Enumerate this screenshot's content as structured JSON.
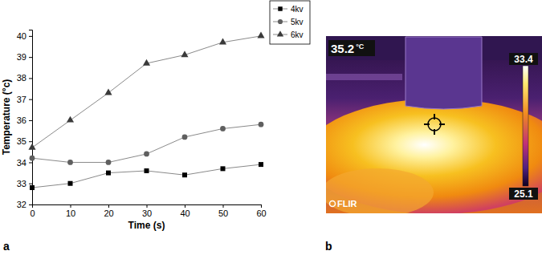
{
  "chart_data": {
    "type": "line",
    "panel_label": "a",
    "x_label": "Time (s)",
    "y_label": "Temperature (°c)",
    "x": [
      0,
      10,
      20,
      30,
      40,
      50,
      60
    ],
    "series": [
      {
        "name": "4kv",
        "color": "#000000",
        "marker": "square",
        "line_style": "solid",
        "values": [
          32.8,
          33.0,
          33.5,
          33.6,
          33.4,
          33.7,
          33.9
        ]
      },
      {
        "name": "5kv",
        "color": "#5f5f5f",
        "marker": "circle",
        "line_style": "solid",
        "values": [
          34.2,
          34.0,
          34.0,
          34.4,
          35.2,
          35.6,
          35.8
        ]
      },
      {
        "name": "6kv",
        "color": "#3a3a3a",
        "marker": "triangle",
        "line_style": "solid",
        "values": [
          34.7,
          36.0,
          37.3,
          38.7,
          39.1,
          39.7,
          40.0
        ]
      }
    ],
    "xlim": [
      0,
      60
    ],
    "xticks": [
      0,
      10,
      20,
      30,
      40,
      50,
      60
    ],
    "ylim": [
      32,
      40.3
    ],
    "yticks": [
      32,
      33,
      34,
      35,
      36,
      37,
      38,
      39,
      40
    ],
    "grid": false,
    "legend": "upper right"
  },
  "thermal_image": {
    "panel_label": "b",
    "spot_temperature": 35.2,
    "spot_unit": "°C",
    "colorbar_range": [
      25.1,
      33.4
    ],
    "colorbar_ticks": [
      25.1,
      33.4
    ],
    "logo": "FLIR"
  }
}
